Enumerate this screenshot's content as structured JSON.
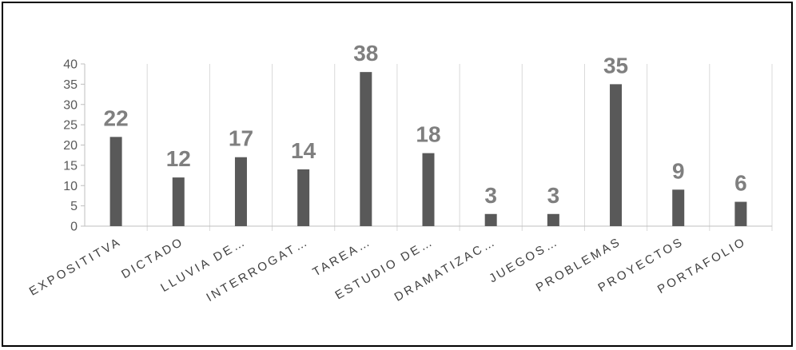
{
  "chart_data": {
    "type": "bar",
    "title": "",
    "xlabel": "",
    "ylabel": "",
    "ylim": [
      0,
      40
    ],
    "yticks": [
      0,
      5,
      10,
      15,
      20,
      25,
      30,
      35,
      40
    ],
    "categories": [
      "EXPOSITITVA",
      "DICTADO",
      "LLUVIA DE…",
      "INTERROGAT…",
      "TAREA…",
      "ESTUDIO DE…",
      "DRAMATIZAC…",
      "JUEGOS…",
      "PROBLEMAS",
      "PROYECTOS",
      "PORTAFOLIO"
    ],
    "values": [
      22,
      12,
      17,
      14,
      38,
      18,
      3,
      3,
      35,
      9,
      6
    ],
    "grid": "vertical category separators",
    "legend": "none",
    "colors": {
      "bar": "#595959",
      "data_label": "#7f7f7f",
      "axis": "#bfbfbf",
      "grid": "#d9d9d9"
    }
  }
}
